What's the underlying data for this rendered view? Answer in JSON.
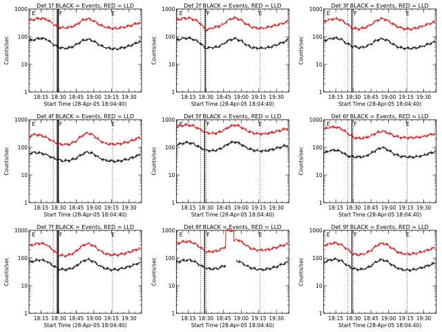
{
  "colors": {
    "events": "#000000",
    "lld": "#e00000",
    "background": "#ffffff",
    "axis": "#000000"
  },
  "common": {
    "xlabel": "Start Time (28-Apr-05 18:04:40)",
    "ylabel": "Counts/sec",
    "y_ticks": [
      "1",
      "10",
      "100",
      "1000"
    ],
    "x_ticks": [
      "18:15",
      "18:30",
      "18:45",
      "19:00",
      "19:15",
      "19:30"
    ],
    "marker_labels": [
      "E",
      "F",
      "E"
    ]
  },
  "chart_data": [
    {
      "type": "line",
      "title": "Det 1f BLACK = Events, RED = LLD",
      "xlabel": "Start Time (28-Apr-05 18:04:40)",
      "ylabel": "Counts/sec",
      "x_unit": "minutes after 18:04:40",
      "xlim": [
        0,
        96
      ],
      "ylim": [
        1,
        1000
      ],
      "yscale": "log",
      "dotted_lines_x": [
        20.7,
        25.3,
        71.2
      ],
      "solid_lines_x": [
        24.1,
        25.0
      ],
      "series": [
        {
          "name": "BLACK = Events",
          "color": "#000000",
          "x": [
            0,
            5,
            10,
            15,
            20,
            25,
            30,
            35,
            40,
            45,
            50,
            55,
            60,
            65,
            70,
            75,
            80,
            85,
            90,
            95
          ],
          "values": [
            70,
            80,
            88,
            80,
            55,
            42,
            38,
            40,
            50,
            70,
            82,
            70,
            50,
            40,
            37,
            36,
            40,
            45,
            55,
            70
          ]
        },
        {
          "name": "RED = LLD",
          "color": "#e00000",
          "x": [
            0,
            5,
            10,
            15,
            20,
            25,
            30,
            35,
            40,
            45,
            50,
            55,
            60,
            65,
            70,
            75,
            80,
            85,
            90,
            95
          ],
          "values": [
            380,
            430,
            460,
            420,
            300,
            220,
            210,
            220,
            260,
            380,
            450,
            380,
            270,
            220,
            200,
            200,
            220,
            240,
            280,
            330
          ]
        }
      ]
    },
    {
      "type": "line",
      "title": "Det 2f BLACK = Events, RED = LLD",
      "xlabel": "Start Time (28-Apr-05 18:04:40)",
      "ylabel": "Counts/sec",
      "x_unit": "minutes after 18:04:40",
      "xlim": [
        0,
        96
      ],
      "ylim": [
        1,
        1000
      ],
      "yscale": "log",
      "dotted_lines_x": [
        20.7,
        25.3,
        71.2
      ],
      "solid_lines_x": [
        24.6
      ],
      "series": [
        {
          "name": "BLACK = Events",
          "color": "#000000",
          "x": [
            0,
            5,
            10,
            15,
            20,
            25,
            30,
            35,
            40,
            45,
            50,
            55,
            60,
            65,
            70,
            75,
            80,
            85,
            90,
            95
          ],
          "values": [
            75,
            85,
            90,
            80,
            60,
            38,
            40,
            42,
            55,
            75,
            85,
            72,
            50,
            40,
            38,
            38,
            42,
            50,
            60,
            75
          ]
        },
        {
          "name": "RED = LLD",
          "color": "#e00000",
          "x": [
            0,
            5,
            10,
            15,
            20,
            25,
            30,
            35,
            40,
            45,
            50,
            55,
            60,
            65,
            70,
            75,
            80,
            85,
            90,
            95
          ],
          "values": [
            400,
            450,
            470,
            420,
            320,
            170,
            200,
            230,
            280,
            420,
            480,
            400,
            280,
            220,
            200,
            200,
            230,
            260,
            300,
            350
          ]
        }
      ]
    },
    {
      "type": "line",
      "title": "Det 3f BLACK = Events, RED = LLD",
      "xlabel": "Start Time (28-Apr-05 18:04:40)",
      "ylabel": "Counts/sec",
      "x_unit": "minutes after 18:04:40",
      "xlim": [
        0,
        96
      ],
      "ylim": [
        1,
        1000
      ],
      "yscale": "log",
      "dotted_lines_x": [
        20.7,
        25.3,
        71.2
      ],
      "solid_lines_x": [
        24.1
      ],
      "series": [
        {
          "name": "BLACK = Events",
          "color": "#000000",
          "x": [
            0,
            5,
            10,
            15,
            20,
            25,
            30,
            35,
            40,
            45,
            50,
            55,
            60,
            65,
            70,
            75,
            80,
            85,
            90,
            95
          ],
          "values": [
            70,
            85,
            90,
            80,
            55,
            45,
            40,
            42,
            52,
            75,
            85,
            72,
            50,
            40,
            38,
            38,
            40,
            45,
            55,
            65
          ]
        },
        {
          "name": "RED = LLD",
          "color": "#e00000",
          "x": [
            0,
            5,
            10,
            15,
            20,
            25,
            30,
            35,
            40,
            45,
            50,
            55,
            60,
            65,
            70,
            75,
            80,
            85,
            90,
            95
          ],
          "values": [
            350,
            420,
            450,
            400,
            280,
            200,
            190,
            210,
            260,
            380,
            460,
            380,
            270,
            210,
            190,
            190,
            210,
            240,
            290,
            340
          ]
        }
      ]
    },
    {
      "type": "line",
      "title": "Det 4f BLACK = Events, RED = LLD",
      "xlabel": "Start Time (28-Apr-05 18:04:40)",
      "ylabel": "Counts/sec",
      "x_unit": "minutes after 18:04:40",
      "xlim": [
        0,
        96
      ],
      "ylim": [
        1,
        1000
      ],
      "yscale": "log",
      "dotted_lines_x": [
        20.7,
        25.3,
        71.2
      ],
      "solid_lines_x": [
        24.1,
        25.0
      ],
      "series": [
        {
          "name": "BLACK = Events",
          "color": "#000000",
          "x": [
            0,
            5,
            10,
            15,
            20,
            25,
            30,
            35,
            40,
            45,
            50,
            55,
            60,
            65,
            70,
            75,
            80,
            85,
            90,
            95
          ],
          "values": [
            60,
            65,
            62,
            55,
            42,
            35,
            32,
            34,
            40,
            55,
            68,
            58,
            42,
            34,
            32,
            31,
            34,
            38,
            45,
            55
          ]
        },
        {
          "name": "RED = LLD",
          "color": "#e00000",
          "x": [
            0,
            5,
            10,
            15,
            20,
            25,
            30,
            35,
            40,
            45,
            50,
            55,
            60,
            65,
            70,
            75,
            80,
            85,
            90,
            95
          ],
          "values": [
            250,
            290,
            270,
            230,
            170,
            130,
            125,
            130,
            170,
            260,
            330,
            270,
            180,
            140,
            130,
            130,
            140,
            160,
            190,
            230
          ]
        }
      ]
    },
    {
      "type": "line",
      "title": "Det 5f BLACK = Events, RED = LLD",
      "xlabel": "Start Time (28-Apr-05 18:04:40)",
      "ylabel": "Counts/sec",
      "x_unit": "minutes after 18:04:40",
      "xlim": [
        0,
        96
      ],
      "ylim": [
        1,
        1000
      ],
      "yscale": "log",
      "dotted_lines_x": [
        20.7,
        25.3,
        71.2
      ],
      "solid_lines_x": [
        24.1
      ],
      "series": [
        {
          "name": "BLACK = Events",
          "color": "#000000",
          "x": [
            0,
            5,
            10,
            15,
            20,
            25,
            30,
            35,
            40,
            45,
            50,
            55,
            60,
            65,
            70,
            75,
            80,
            85,
            90,
            95
          ],
          "values": [
            120,
            140,
            150,
            130,
            100,
            80,
            75,
            80,
            100,
            140,
            160,
            130,
            95,
            80,
            75,
            75,
            80,
            90,
            105,
            120
          ]
        },
        {
          "name": "RED = LLD",
          "color": "#e00000",
          "x": [
            0,
            5,
            10,
            15,
            20,
            25,
            30,
            35,
            40,
            45,
            50,
            55,
            60,
            65,
            70,
            75,
            80,
            85,
            90,
            95
          ],
          "values": [
            550,
            620,
            650,
            580,
            450,
            350,
            320,
            330,
            400,
            550,
            650,
            550,
            400,
            330,
            310,
            310,
            330,
            370,
            420,
            480
          ]
        }
      ]
    },
    {
      "type": "line",
      "title": "Det 6f BLACK = Events, RED = LLD",
      "xlabel": "Start Time (28-Apr-05 18:04:40)",
      "ylabel": "Counts/sec",
      "x_unit": "minutes after 18:04:40",
      "xlim": [
        0,
        96
      ],
      "ylim": [
        1,
        1000
      ],
      "yscale": "log",
      "dotted_lines_x": [
        20.7,
        25.3,
        71.2
      ],
      "solid_lines_x": [
        24.1
      ],
      "series": [
        {
          "name": "BLACK = Events",
          "color": "#000000",
          "x": [
            0,
            5,
            10,
            15,
            20,
            25,
            30,
            35,
            40,
            45,
            50,
            55,
            60,
            65,
            70,
            75,
            80,
            85,
            90,
            95
          ],
          "values": [
            60,
            75,
            80,
            70,
            50,
            45,
            45,
            47,
            60,
            80,
            100,
            80,
            58,
            48,
            45,
            44,
            47,
            52,
            60,
            70
          ]
        },
        {
          "name": "RED = LLD",
          "color": "#e00000",
          "x": [
            0,
            5,
            10,
            15,
            20,
            25,
            30,
            35,
            40,
            45,
            50,
            55,
            60,
            65,
            70,
            75,
            80,
            85,
            90,
            95
          ],
          "values": [
            450,
            520,
            540,
            470,
            330,
            230,
            210,
            220,
            260,
            330,
            380,
            330,
            260,
            230,
            220,
            220,
            230,
            250,
            280,
            310
          ]
        }
      ]
    },
    {
      "type": "line",
      "title": "Det 7f BLACK = Events, RED = LLD",
      "xlabel": "Start Time (28-Apr-05 18:04:40)",
      "ylabel": "Counts/sec",
      "x_unit": "minutes after 18:04:40",
      "xlim": [
        0,
        96
      ],
      "ylim": [
        1,
        1000
      ],
      "yscale": "log",
      "dotted_lines_x": [
        20.7,
        25.3,
        71.2
      ],
      "solid_lines_x": [
        24.1,
        25.0
      ],
      "series": [
        {
          "name": "BLACK = Events",
          "color": "#000000",
          "x": [
            0,
            5,
            10,
            15,
            20,
            25,
            30,
            35,
            40,
            45,
            50,
            55,
            60,
            65,
            70,
            75,
            80,
            85,
            90,
            95
          ],
          "values": [
            70,
            80,
            85,
            75,
            55,
            40,
            38,
            40,
            50,
            75,
            90,
            75,
            52,
            42,
            38,
            38,
            42,
            48,
            58,
            70
          ]
        },
        {
          "name": "RED = LLD",
          "color": "#e00000",
          "x": [
            0,
            5,
            10,
            15,
            20,
            25,
            30,
            35,
            40,
            45,
            50,
            55,
            60,
            65,
            70,
            75,
            80,
            85,
            90,
            95
          ],
          "values": [
            270,
            320,
            340,
            300,
            200,
            130,
            120,
            130,
            170,
            270,
            340,
            280,
            190,
            140,
            130,
            130,
            140,
            160,
            190,
            230
          ]
        }
      ]
    },
    {
      "type": "line",
      "title": "Det 8f BLACK = Events, RED = LLD",
      "xlabel": "Start Time (28-Apr-05 18:04:40)",
      "ylabel": "Counts/sec",
      "x_unit": "minutes after 18:04:40",
      "xlim": [
        0,
        96
      ],
      "ylim": [
        1,
        1000
      ],
      "yscale": "log",
      "dotted_lines_x": [
        20.7,
        25.3,
        71.2
      ],
      "solid_lines_x": [
        24.1
      ],
      "series": [
        {
          "name": "BLACK = Events",
          "color": "#000000",
          "x": [
            0,
            5,
            10,
            15,
            20,
            25,
            30,
            35,
            40,
            42,
            null,
            51,
            55,
            60,
            65,
            70,
            75,
            80,
            85,
            90,
            95
          ],
          "values": [
            70,
            80,
            85,
            78,
            55,
            42,
            40,
            42,
            50,
            55,
            null,
            80,
            72,
            52,
            42,
            38,
            38,
            42,
            48,
            58,
            70
          ]
        },
        {
          "name": "RED = LLD",
          "color": "#e00000",
          "x": [
            0,
            5,
            10,
            15,
            20,
            24,
            25,
            30,
            35,
            40,
            42,
            42.2,
            45,
            47,
            49,
            49.2,
            51,
            55,
            60,
            65,
            70,
            75,
            80,
            85,
            90,
            95
          ],
          "values": [
            330,
            380,
            400,
            350,
            250,
            180,
            160,
            170,
            180,
            230,
            260,
            1000,
            1000,
            1000,
            1000,
            400,
            480,
            400,
            280,
            210,
            190,
            190,
            210,
            240,
            280,
            320
          ]
        }
      ]
    },
    {
      "type": "line",
      "title": "Det 9f BLACK = Events, RED = LLD",
      "xlabel": "Start Time (28-Apr-05 18:04:40)",
      "ylabel": "Counts/sec",
      "x_unit": "minutes after 18:04:40",
      "xlim": [
        0,
        96
      ],
      "ylim": [
        1,
        1000
      ],
      "yscale": "log",
      "dotted_lines_x": [
        20.7,
        25.3,
        71.2
      ],
      "solid_lines_x": [
        24.1
      ],
      "series": [
        {
          "name": "BLACK = Events",
          "color": "#000000",
          "x": [
            0,
            5,
            10,
            15,
            20,
            25,
            30,
            35,
            40,
            45,
            50,
            55,
            60,
            65,
            70,
            75,
            80,
            85,
            90,
            95
          ],
          "values": [
            70,
            85,
            90,
            80,
            55,
            42,
            38,
            40,
            50,
            75,
            88,
            72,
            50,
            40,
            37,
            37,
            40,
            46,
            55,
            65
          ]
        },
        {
          "name": "RED = LLD",
          "color": "#e00000",
          "x": [
            0,
            5,
            10,
            15,
            20,
            25,
            30,
            35,
            40,
            45,
            50,
            55,
            60,
            65,
            70,
            75,
            80,
            85,
            90,
            95
          ],
          "values": [
            280,
            330,
            350,
            300,
            210,
            140,
            130,
            140,
            180,
            280,
            350,
            290,
            200,
            150,
            140,
            140,
            150,
            170,
            200,
            240
          ]
        }
      ]
    }
  ]
}
